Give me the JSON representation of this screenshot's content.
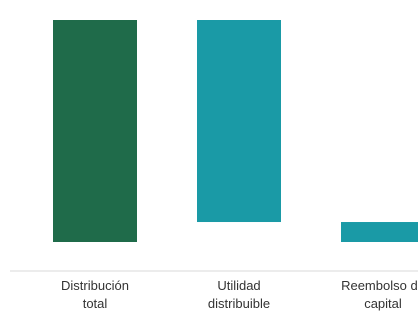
{
  "chart_data": {
    "type": "bar",
    "variant": "waterfall",
    "title": "",
    "xlabel": "",
    "ylabel": "",
    "grid": false,
    "legend": "none",
    "categories": [
      [
        "Distribución",
        "total"
      ],
      [
        "Utilidad",
        "distribuible"
      ],
      [
        "Reembolso de",
        "capital"
      ]
    ],
    "bars": [
      {
        "category_index": 0,
        "start": 0,
        "end": 100,
        "value": 100,
        "color": "#1f6b4a"
      },
      {
        "category_index": 1,
        "start": 9,
        "end": 100,
        "value": 91,
        "color": "#1a9aa6"
      },
      {
        "category_index": 2,
        "start": 0,
        "end": 9,
        "value": 9,
        "color": "#1a9aa6"
      }
    ],
    "ylim": [
      0,
      100
    ],
    "axis_color": "#d9d9d9"
  }
}
